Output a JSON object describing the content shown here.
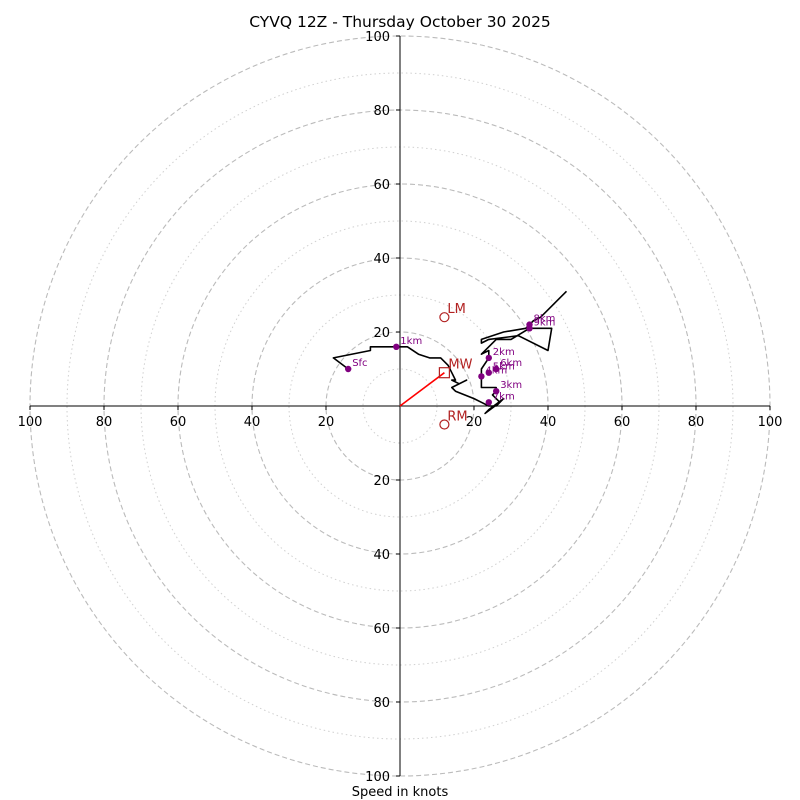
{
  "chart_data": {
    "type": "line",
    "title": "CYVQ 12Z - Thursday October 30 2025",
    "xlabel": "Speed in knots",
    "ylabel": "",
    "xlim": [
      -100,
      100
    ],
    "ylim": [
      -100,
      100
    ],
    "rings": {
      "major": [
        20,
        40,
        60,
        80,
        100
      ],
      "minor": [
        10,
        30,
        50,
        70,
        90
      ],
      "major_style": "dashed",
      "minor_style": "dotted",
      "color": "#bbbbbb"
    },
    "tick_labels": [
      "100",
      "80",
      "60",
      "40",
      "20",
      "20",
      "40",
      "60",
      "80",
      "100"
    ],
    "axis_ticks": [
      -100,
      -80,
      -60,
      -40,
      -20,
      20,
      40,
      60,
      80,
      100
    ],
    "hodograph": {
      "color": "#000000",
      "points": [
        [
          -14,
          10
        ],
        [
          -18,
          13
        ],
        [
          -8,
          15
        ],
        [
          -8,
          16
        ],
        [
          -1,
          16
        ],
        [
          2,
          16
        ],
        [
          5,
          14
        ],
        [
          8,
          13
        ],
        [
          11,
          13
        ],
        [
          13,
          11
        ],
        [
          14,
          9
        ],
        [
          15,
          7
        ],
        [
          14,
          7
        ],
        [
          16,
          6
        ],
        [
          18,
          7
        ],
        [
          14,
          5
        ],
        [
          15,
          4
        ],
        [
          20,
          2
        ],
        [
          22,
          1
        ],
        [
          24,
          0
        ],
        [
          26,
          0
        ],
        [
          28,
          2
        ],
        [
          24,
          -1
        ],
        [
          23,
          -2
        ],
        [
          27,
          1
        ],
        [
          25,
          3
        ],
        [
          26,
          4
        ],
        [
          26,
          5
        ],
        [
          22,
          5
        ],
        [
          22,
          8
        ],
        [
          22,
          10
        ],
        [
          24,
          13
        ],
        [
          24,
          15
        ],
        [
          22,
          14
        ],
        [
          26,
          18
        ],
        [
          30,
          18
        ],
        [
          35,
          21
        ],
        [
          41,
          21
        ],
        [
          40,
          15
        ],
        [
          32,
          19
        ],
        [
          24,
          18
        ],
        [
          22,
          17
        ],
        [
          22,
          18
        ],
        [
          28,
          20
        ],
        [
          34,
          21
        ],
        [
          36,
          23
        ],
        [
          38,
          24
        ],
        [
          40,
          26
        ],
        [
          43,
          29
        ],
        [
          45,
          31
        ]
      ]
    },
    "height_markers": {
      "color": "#800080",
      "points": [
        {
          "label": "Sfc",
          "u": -14,
          "v": 10
        },
        {
          "label": "1km",
          "u": -1,
          "v": 16
        },
        {
          "label": "2km",
          "u": 24,
          "v": 13
        },
        {
          "label": "3km",
          "u": 26,
          "v": 4
        },
        {
          "label": "4km",
          "u": 22,
          "v": 8
        },
        {
          "label": "5km",
          "u": 24,
          "v": 9
        },
        {
          "label": "6km",
          "u": 26,
          "v": 10
        },
        {
          "label": "7km",
          "u": 24,
          "v": 1
        },
        {
          "label": "8km",
          "u": 35,
          "v": 22
        },
        {
          "label": "9km",
          "u": 35,
          "v": 21
        }
      ]
    },
    "storm_motion": {
      "color": "#b22222",
      "mean_wind": {
        "label": "MW",
        "u": 12,
        "v": 9
      },
      "left_mover": {
        "label": "LM",
        "u": 12,
        "v": 24
      },
      "right_mover": {
        "label": "RM",
        "u": 12,
        "v": -5
      }
    },
    "mean_wind_vector": {
      "color": "#ff0000",
      "from": [
        0,
        0
      ],
      "to": [
        12,
        9
      ]
    }
  }
}
